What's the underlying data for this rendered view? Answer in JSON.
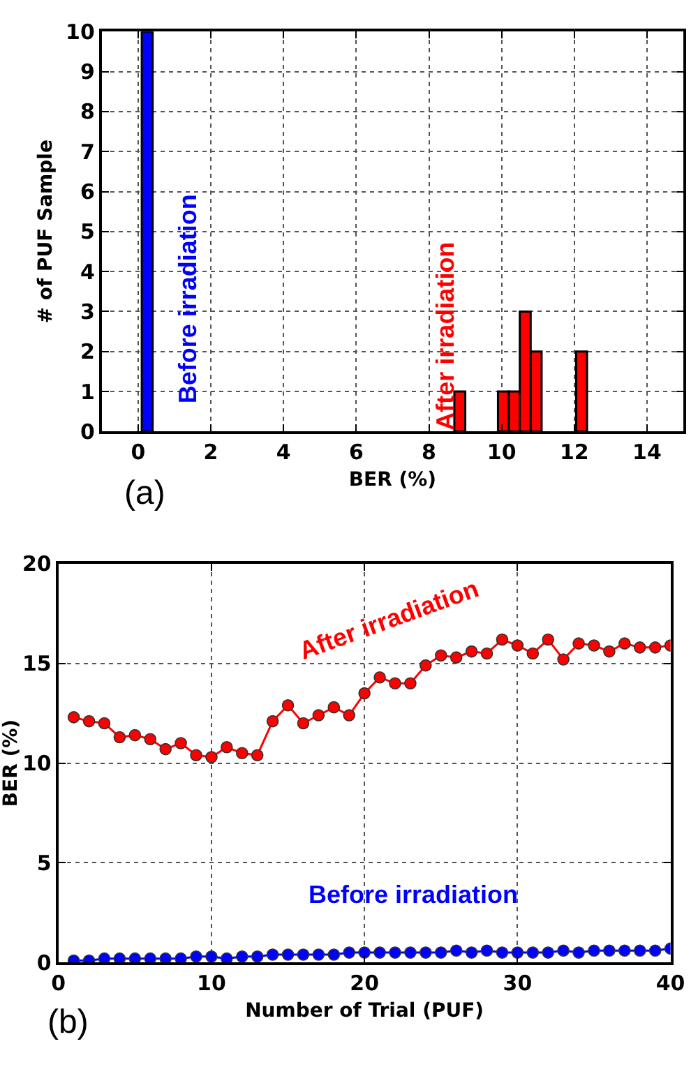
{
  "chart_data": [
    {
      "type": "bar",
      "xlabel": "BER (%)",
      "ylabel": "# of PUF Sample",
      "series": [
        {
          "name": "Before irradiation",
          "color": "#0000ff",
          "x": [
            0.25
          ],
          "values": [
            10
          ]
        },
        {
          "name": "After irradiation",
          "color": "#ff0000",
          "x": [
            8.85,
            10.05,
            10.35,
            10.65,
            10.95,
            12.2
          ],
          "values": [
            1,
            1,
            1,
            3,
            2,
            2
          ]
        }
      ],
      "xlim": [
        -1,
        15
      ],
      "xticks": [
        0,
        2,
        4,
        6,
        8,
        10,
        12,
        14
      ],
      "ylim": [
        0,
        10
      ],
      "yticks": [
        0,
        1,
        2,
        3,
        4,
        5,
        6,
        7,
        8,
        9,
        10
      ],
      "grid": true,
      "annotations": [
        "(a)"
      ]
    },
    {
      "type": "line",
      "xlabel": "Number of Trial (PUF)",
      "ylabel": "BER (%)",
      "marker": "circle",
      "line_style": "solid",
      "x": [
        1,
        2,
        3,
        4,
        5,
        6,
        7,
        8,
        9,
        10,
        11,
        12,
        13,
        14,
        15,
        16,
        17,
        18,
        19,
        20,
        21,
        22,
        23,
        24,
        25,
        26,
        27,
        28,
        29,
        30,
        31,
        32,
        33,
        34,
        35,
        36,
        37,
        38,
        39,
        40
      ],
      "series": [
        {
          "name": "After irradiation",
          "color": "#ff0000",
          "values": [
            12.3,
            12.1,
            12.0,
            11.3,
            11.4,
            11.2,
            10.7,
            11.0,
            10.4,
            10.3,
            10.8,
            10.5,
            10.4,
            12.1,
            12.9,
            12.0,
            12.4,
            12.8,
            12.4,
            13.5,
            14.3,
            14.0,
            14.0,
            14.9,
            15.4,
            15.3,
            15.6,
            15.5,
            16.2,
            15.9,
            15.5,
            16.2,
            15.2,
            16.0,
            15.9,
            15.6,
            16.0,
            15.8,
            15.8,
            15.9
          ]
        },
        {
          "name": "Before irradiation",
          "color": "#0000ff",
          "values": [
            0.1,
            0.1,
            0.2,
            0.2,
            0.2,
            0.2,
            0.2,
            0.2,
            0.3,
            0.3,
            0.2,
            0.3,
            0.3,
            0.4,
            0.4,
            0.4,
            0.4,
            0.4,
            0.5,
            0.5,
            0.5,
            0.5,
            0.5,
            0.5,
            0.5,
            0.6,
            0.5,
            0.6,
            0.5,
            0.5,
            0.5,
            0.5,
            0.6,
            0.5,
            0.6,
            0.6,
            0.6,
            0.6,
            0.6,
            0.7
          ]
        }
      ],
      "xlim": [
        0,
        40
      ],
      "xticks": [
        0,
        10,
        20,
        30,
        40
      ],
      "ylim": [
        0,
        20
      ],
      "yticks": [
        0,
        5,
        10,
        15,
        20
      ],
      "grid": true,
      "annotations": [
        "(b)"
      ]
    }
  ]
}
